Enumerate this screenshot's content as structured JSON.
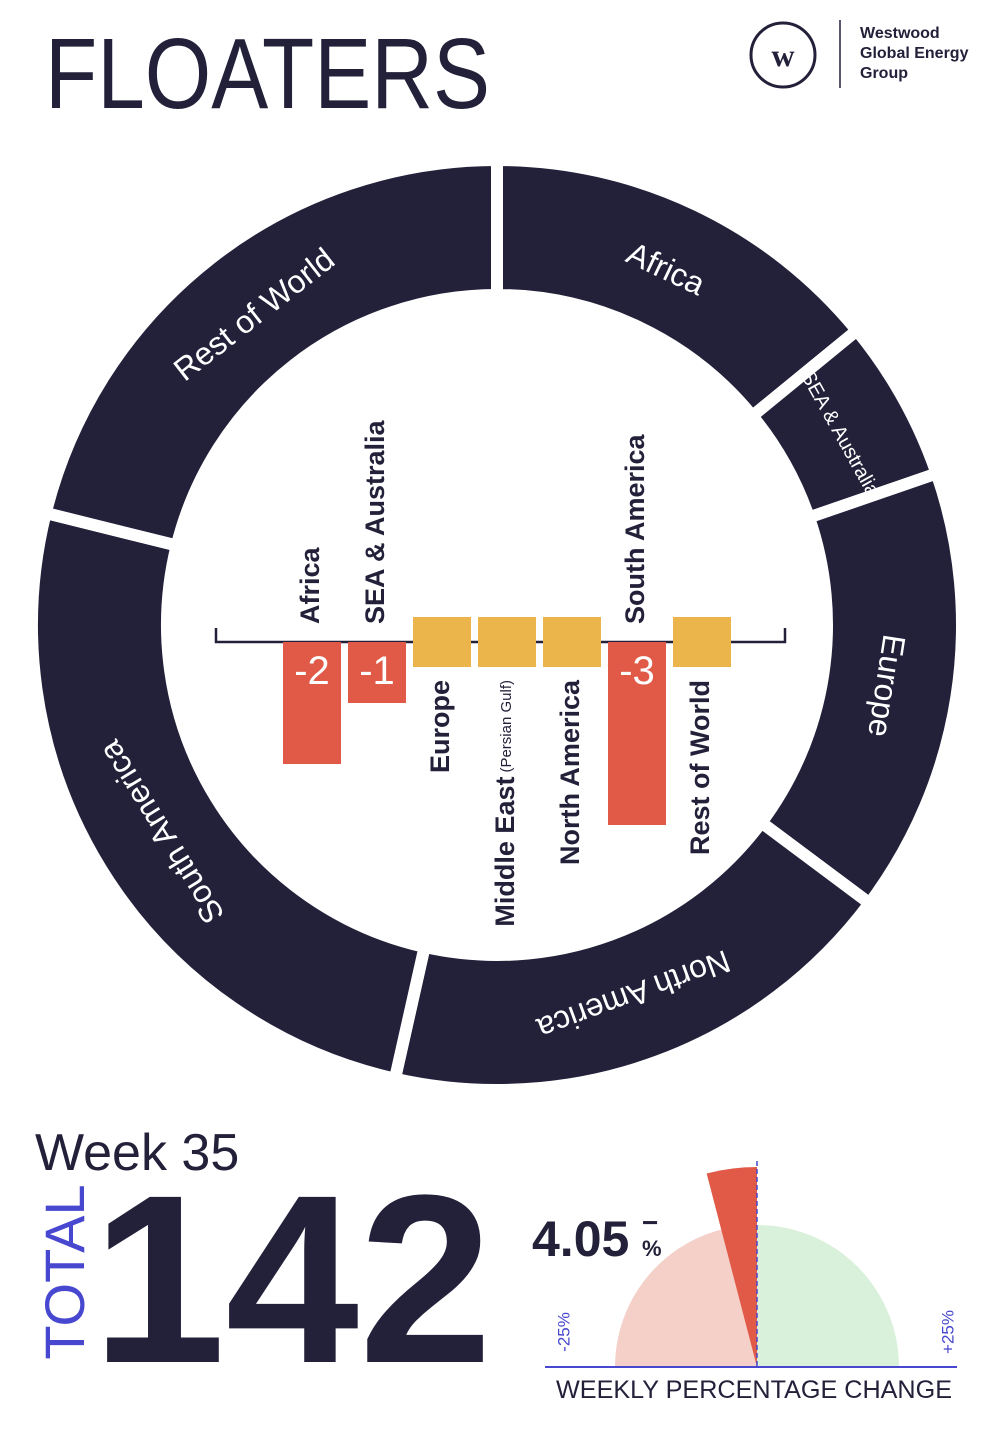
{
  "header": {
    "title": "FLOATERS",
    "logo_lines": [
      "Westwood",
      "Global Energy",
      "Group"
    ]
  },
  "chart_data": [
    {
      "type": "donut",
      "categories": [
        "Africa",
        "SEA & Australia",
        "Europe",
        "North America",
        "South America",
        "Rest of World"
      ],
      "values": [
        20,
        8,
        22,
        26,
        36,
        30
      ],
      "color": "#23213a"
    },
    {
      "type": "bar",
      "categories": [
        "Africa",
        "SEA & Australia",
        "Europe",
        "Middle East",
        "North America",
        "South America",
        "Rest of World"
      ],
      "category_note": "(Persian Gulf)",
      "values": [
        -2,
        -1,
        0,
        0,
        0,
        -3,
        0
      ],
      "negative_color": "#e05a47",
      "zero_color": "#ecb54c"
    },
    {
      "type": "gauge",
      "value": -4.05,
      "value_label": "4.05",
      "sign": "−",
      "unit": "%",
      "xlim": [
        -25,
        25
      ],
      "xticks": [
        {
          "value": -25,
          "label": "-25%"
        },
        {
          "value": 25,
          "label": "+25%"
        }
      ],
      "x_label": "WEEKLY PERCENTAGE CHANGE",
      "negative_color": "#f4d0c9",
      "positive_color": "#d9f0da",
      "value_color": "#e05a47"
    }
  ],
  "week": "Week 35",
  "total": {
    "label": "TOTAL",
    "value": 142
  }
}
